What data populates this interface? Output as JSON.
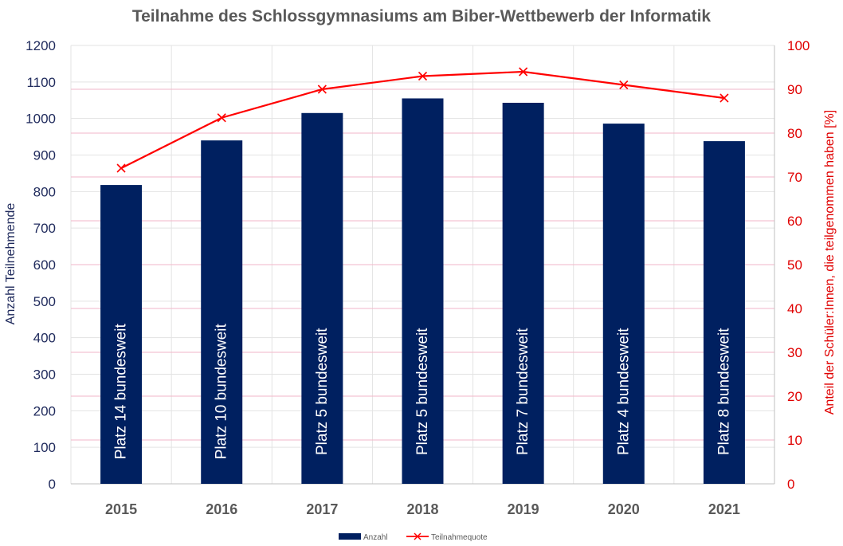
{
  "chart_data": {
    "type": "bar",
    "title": "Teilnahme des Schlossgymnasiums am Biber-Wettbewerb der Informatik",
    "categories": [
      "2015",
      "2016",
      "2017",
      "2018",
      "2019",
      "2020",
      "2021"
    ],
    "ylabel": "Anzahl Teilnehmende",
    "ylim": [
      0,
      1200
    ],
    "yticks": [
      "0",
      "100",
      "200",
      "300",
      "400",
      "500",
      "600",
      "700",
      "800",
      "900",
      "1000",
      "1100",
      "1200"
    ],
    "y2label": "Anteil der Schüler:Innen, die teilgenommen haben [%]",
    "y2lim": [
      0,
      100
    ],
    "y2ticks": [
      "0",
      "10",
      "20",
      "30",
      "40",
      "50",
      "60",
      "70",
      "80",
      "90",
      "100"
    ],
    "grid": true,
    "legend_position": "bottom",
    "series": [
      {
        "name": "Anzahl",
        "type": "bar",
        "axis": "left",
        "color": "#002060",
        "values": [
          818,
          940,
          1015,
          1055,
          1043,
          986,
          938
        ],
        "labels": [
          "Platz 14 bundesweit",
          "Platz 10 bundesweit",
          "Platz 5 bundesweit",
          "Platz 5 bundesweit",
          "Platz 7 bundesweit",
          "Platz 4 bundesweit",
          "Platz 8 bundesweit"
        ]
      },
      {
        "name": "Teilnahmequote",
        "type": "line",
        "axis": "right",
        "color": "#ff0000",
        "marker": "x",
        "values": [
          72,
          83.5,
          90,
          93,
          94,
          91,
          88
        ]
      }
    ]
  }
}
